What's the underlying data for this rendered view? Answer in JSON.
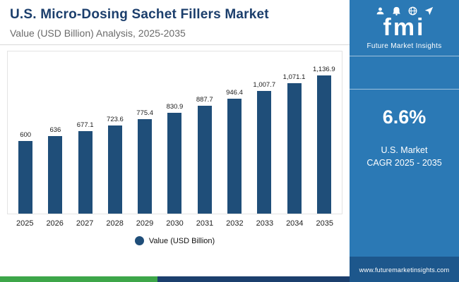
{
  "header": {
    "title": "U.S. Micro-Dosing Sachet Fillers Market",
    "subtitle": "Value (USD Billion) Analysis, 2025-2035"
  },
  "chart_data": {
    "type": "bar",
    "title": "U.S. Micro-Dosing Sachet Fillers Market",
    "subtitle": "Value (USD Billion) Analysis, 2025-2035",
    "categories": [
      "2025",
      "2026",
      "2027",
      "2028",
      "2029",
      "2030",
      "2031",
      "2032",
      "2033",
      "2034",
      "2035"
    ],
    "values": [
      600,
      636,
      677.1,
      723.6,
      775.4,
      830.9,
      887.7,
      946.4,
      1007.7,
      1071.1,
      1136.9
    ],
    "value_labels": [
      "600",
      "636",
      "677.1",
      "723.6",
      "775.4",
      "830.9",
      "887.7",
      "946.4",
      "1,007.7",
      "1,071.1",
      "1,136.9"
    ],
    "legend": "Value (USD Billion)",
    "ylabel": "Value (USD Billion)",
    "xlabel": "",
    "ylim": [
      0,
      1200
    ],
    "grid": false,
    "legend_position": "bottom",
    "bar_color": "#1f4e79"
  },
  "sidebar": {
    "logo_text": "fmi",
    "brand": "Future Market Insights",
    "cagr_value": "6.6%",
    "cagr_line1": "U.S. Market",
    "cagr_line2": "CAGR 2025 - 2035",
    "website": "www.futuremarketinsights.com"
  },
  "colors": {
    "bar": "#1f4e79",
    "title": "#1b3e6c",
    "sidebar_bg": "#2b79b5",
    "url_bar_bg": "#1d578c",
    "stripe_green": "#3da649",
    "stripe_navy": "#1b3f6d"
  }
}
